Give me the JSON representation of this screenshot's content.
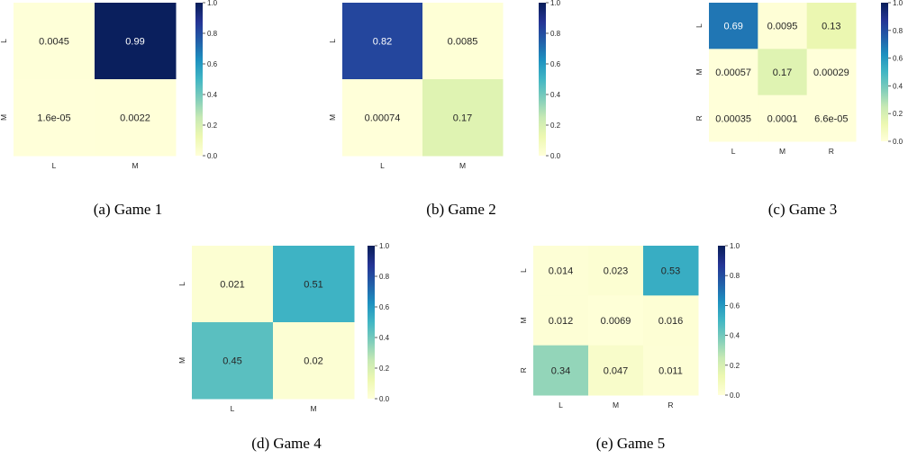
{
  "chart_data": [
    {
      "type": "heatmap",
      "caption": "(a) Game 1",
      "rows": [
        "L",
        "M"
      ],
      "cols": [
        "L",
        "M"
      ],
      "values": [
        [
          0.0045,
          0.99
        ],
        [
          1.6e-05,
          0.0022
        ]
      ],
      "labels": [
        [
          "0.0045",
          "0.99"
        ],
        [
          "1.6e-05",
          "0.0022"
        ]
      ],
      "vmin": 0,
      "vmax": 1.0,
      "colorbar_ticks": [
        "0.0",
        "0.2",
        "0.4",
        "0.6",
        "0.8",
        "1.0"
      ],
      "colormap": "YlGnBu"
    },
    {
      "type": "heatmap",
      "caption": "(b) Game 2",
      "rows": [
        "L",
        "M"
      ],
      "cols": [
        "L",
        "M"
      ],
      "values": [
        [
          0.82,
          0.0085
        ],
        [
          0.00074,
          0.17
        ]
      ],
      "labels": [
        [
          "0.82",
          "0.0085"
        ],
        [
          "0.00074",
          "0.17"
        ]
      ],
      "vmin": 0,
      "vmax": 1.0,
      "colorbar_ticks": [
        "0.0",
        "0.2",
        "0.4",
        "0.6",
        "0.8",
        "1.0"
      ],
      "colormap": "YlGnBu"
    },
    {
      "type": "heatmap",
      "caption": "(c) Game 3",
      "rows": [
        "L",
        "M",
        "R"
      ],
      "cols": [
        "L",
        "M",
        "R"
      ],
      "values": [
        [
          0.69,
          0.0095,
          0.13
        ],
        [
          0.00057,
          0.17,
          0.00029
        ],
        [
          0.00035,
          0.0001,
          6.6e-05
        ]
      ],
      "labels": [
        [
          "0.69",
          "0.0095",
          "0.13"
        ],
        [
          "0.00057",
          "0.17",
          "0.00029"
        ],
        [
          "0.00035",
          "0.0001",
          "6.6e-05"
        ]
      ],
      "vmin": 0,
      "vmax": 1.0,
      "colorbar_ticks": [
        "0.0",
        "0.2",
        "0.4",
        "0.6",
        "0.8",
        "1.0"
      ],
      "colormap": "YlGnBu"
    },
    {
      "type": "heatmap",
      "caption": "(d) Game 4",
      "rows": [
        "L",
        "M"
      ],
      "cols": [
        "L",
        "M"
      ],
      "values": [
        [
          0.021,
          0.51
        ],
        [
          0.45,
          0.02
        ]
      ],
      "labels": [
        [
          "0.021",
          "0.51"
        ],
        [
          "0.45",
          "0.02"
        ]
      ],
      "vmin": 0,
      "vmax": 1.0,
      "colorbar_ticks": [
        "0.0",
        "0.2",
        "0.4",
        "0.6",
        "0.8",
        "1.0"
      ],
      "colormap": "YlGnBu"
    },
    {
      "type": "heatmap",
      "caption": "(e) Game 5",
      "rows": [
        "L",
        "M",
        "R"
      ],
      "cols": [
        "L",
        "M",
        "R"
      ],
      "values": [
        [
          0.014,
          0.023,
          0.53
        ],
        [
          0.012,
          0.0069,
          0.016
        ],
        [
          0.34,
          0.047,
          0.011
        ]
      ],
      "labels": [
        [
          "0.014",
          "0.023",
          "0.53"
        ],
        [
          "0.012",
          "0.0069",
          "0.016"
        ],
        [
          "0.34",
          "0.047",
          "0.011"
        ]
      ],
      "vmin": 0,
      "vmax": 1.0,
      "colorbar_ticks": [
        "0.0",
        "0.2",
        "0.4",
        "0.6",
        "0.8",
        "1.0"
      ],
      "colormap": "YlGnBu"
    }
  ]
}
